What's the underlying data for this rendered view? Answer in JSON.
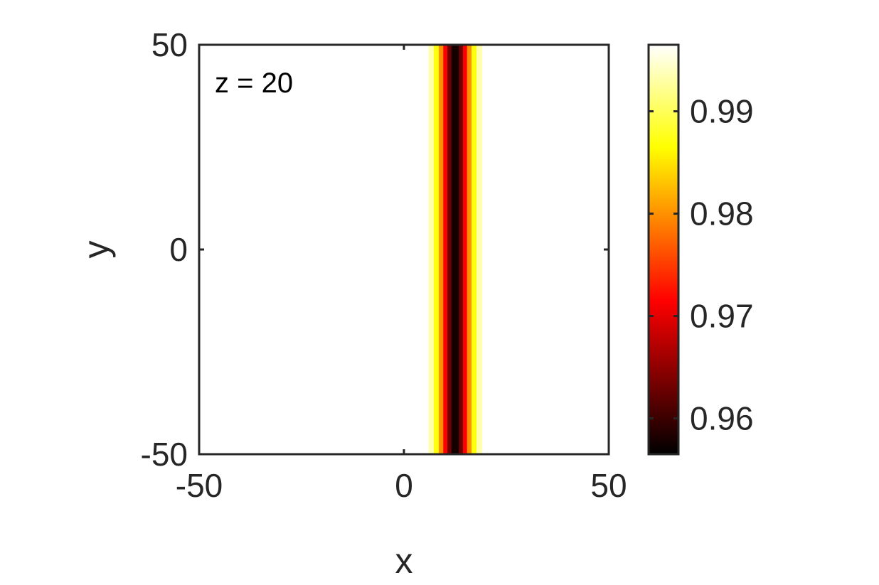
{
  "chart_data": {
    "type": "heatmap",
    "title": "",
    "xlabel": "x",
    "ylabel": "y",
    "xlim": [
      -50,
      50
    ],
    "ylim": [
      -50,
      50
    ],
    "x_ticks": [
      -50,
      0,
      50
    ],
    "y_ticks": [
      -50,
      0,
      50
    ],
    "x_tick_labels": [
      "-50",
      "0",
      "50"
    ],
    "y_tick_labels": [
      "-50",
      "0",
      "50"
    ],
    "annotation": "z = 20",
    "colormap": "hot",
    "colorbar": {
      "range": [
        0.9565,
        0.9965
      ],
      "ticks": [
        0.96,
        0.97,
        0.98,
        0.99
      ],
      "tick_labels": [
        "0.96",
        "0.97",
        "0.98",
        "0.99"
      ]
    },
    "field": {
      "description": "uniform in y; dark soliton stripe varying along x",
      "x_profile": [
        {
          "x": 6.0,
          "value": 0.9965
        },
        {
          "x": 7.3,
          "value": 0.99
        },
        {
          "x": 8.5,
          "value": 0.984
        },
        {
          "x": 9.6,
          "value": 0.976
        },
        {
          "x": 10.6,
          "value": 0.967
        },
        {
          "x": 11.6,
          "value": 0.959
        },
        {
          "x": 12.5,
          "value": 0.9565
        },
        {
          "x": 13.4,
          "value": 0.959
        },
        {
          "x": 14.4,
          "value": 0.967
        },
        {
          "x": 15.4,
          "value": 0.976
        },
        {
          "x": 16.5,
          "value": 0.984
        },
        {
          "x": 17.7,
          "value": 0.99
        },
        {
          "x": 19.0,
          "value": 0.9965
        }
      ]
    }
  }
}
